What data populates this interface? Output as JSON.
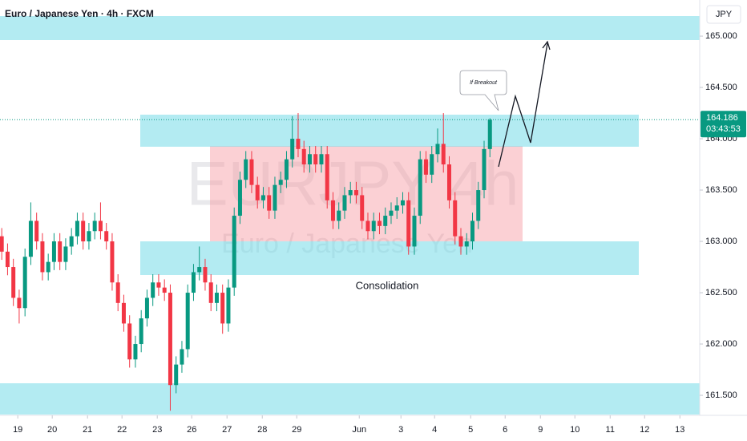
{
  "header": {
    "title": "Euro / Japanese Yen · 4h · FXCM",
    "currency": "JPY"
  },
  "watermark": {
    "symbol": "EURJPY 4h",
    "name": "Euro / Japanese Yen"
  },
  "annotations": {
    "zone_label": "Consolidation",
    "callout": "If Breakout",
    "countdown": "03:43:53"
  },
  "chart_data": {
    "type": "candlestick",
    "up_color": "#089981",
    "down_color": "#f23645",
    "grid": false,
    "open": [
      163.05,
      162.9,
      162.75,
      162.45,
      162.35,
      162.85,
      163.2,
      163.0,
      162.7,
      162.8,
      163.0,
      162.8,
      162.95,
      163.05,
      163.2,
      163.0,
      163.1,
      163.2,
      163.1,
      163.0,
      162.6,
      162.4,
      162.2,
      161.85,
      162.0,
      162.25,
      162.45,
      162.6,
      162.55,
      162.5,
      161.6,
      161.8,
      161.95,
      162.5,
      162.7,
      162.75,
      162.6,
      162.4,
      162.5,
      162.2,
      162.55,
      163.25,
      163.6,
      163.8,
      163.55,
      163.4,
      163.45,
      163.3,
      163.55,
      163.6,
      163.8,
      164.0,
      163.9,
      163.75,
      163.85,
      163.75,
      163.85,
      163.4,
      163.2,
      163.3,
      163.45,
      163.5,
      163.45,
      163.2,
      163.1,
      163.2,
      163.15,
      163.25,
      163.3,
      163.35,
      163.4,
      162.95,
      163.25,
      163.8,
      163.65,
      163.85,
      163.95,
      163.75,
      163.4,
      163.05,
      162.95,
      163.0,
      163.2,
      163.5,
      163.9
    ],
    "high": [
      163.13,
      162.98,
      162.83,
      162.53,
      162.93,
      163.38,
      163.28,
      163.08,
      162.88,
      163.08,
      163.08,
      163.03,
      163.13,
      163.28,
      163.28,
      163.18,
      163.28,
      163.38,
      163.18,
      163.08,
      162.68,
      162.48,
      162.28,
      162.08,
      162.33,
      162.53,
      162.68,
      162.68,
      162.63,
      162.58,
      161.88,
      162.03,
      162.58,
      162.78,
      162.95,
      162.83,
      162.68,
      162.58,
      162.58,
      162.63,
      163.33,
      163.68,
      163.88,
      163.88,
      163.63,
      163.53,
      163.53,
      163.63,
      163.68,
      163.88,
      164.22,
      164.25,
      163.98,
      163.93,
      163.93,
      163.93,
      163.93,
      163.48,
      163.38,
      163.53,
      163.58,
      163.58,
      163.53,
      163.28,
      163.28,
      163.28,
      163.33,
      163.38,
      163.43,
      163.48,
      163.48,
      163.33,
      163.88,
      163.88,
      163.93,
      164.1,
      164.25,
      163.83,
      163.48,
      163.13,
      163.08,
      163.28,
      163.58,
      163.98,
      164.2
    ],
    "low": [
      162.82,
      162.67,
      162.37,
      162.2,
      162.27,
      162.77,
      162.92,
      162.62,
      162.62,
      162.72,
      162.72,
      162.72,
      162.87,
      162.97,
      162.92,
      162.92,
      163.02,
      163.02,
      162.92,
      162.52,
      162.32,
      162.12,
      161.77,
      161.77,
      161.92,
      162.17,
      162.37,
      162.47,
      162.42,
      161.35,
      161.52,
      161.72,
      161.87,
      162.42,
      162.62,
      162.52,
      162.32,
      162.32,
      162.1,
      162.12,
      162.47,
      163.17,
      163.52,
      163.47,
      163.32,
      163.32,
      163.22,
      163.22,
      163.47,
      163.52,
      163.72,
      163.82,
      163.67,
      163.67,
      163.67,
      163.67,
      163.32,
      163.12,
      163.12,
      163.22,
      163.37,
      163.37,
      163.12,
      163.02,
      163.02,
      163.07,
      163.07,
      163.17,
      163.22,
      163.27,
      162.87,
      162.87,
      163.17,
      163.57,
      163.57,
      163.77,
      163.67,
      163.32,
      162.97,
      162.87,
      162.87,
      162.92,
      163.12,
      163.42,
      163.82
    ],
    "close": [
      162.9,
      162.75,
      162.45,
      162.35,
      162.85,
      163.2,
      163.0,
      162.7,
      162.8,
      163.0,
      162.8,
      162.95,
      163.05,
      163.2,
      163.0,
      163.1,
      163.2,
      163.1,
      163.0,
      162.6,
      162.4,
      162.2,
      161.85,
      162.0,
      162.25,
      162.45,
      162.6,
      162.55,
      162.5,
      161.6,
      161.8,
      161.95,
      162.5,
      162.7,
      162.75,
      162.6,
      162.4,
      162.5,
      162.2,
      162.55,
      163.25,
      163.6,
      163.8,
      163.55,
      163.4,
      163.45,
      163.3,
      163.55,
      163.6,
      163.8,
      164.0,
      163.9,
      163.75,
      163.85,
      163.75,
      163.85,
      163.4,
      163.2,
      163.3,
      163.45,
      163.5,
      163.45,
      163.2,
      163.1,
      163.2,
      163.15,
      163.25,
      163.3,
      163.35,
      163.4,
      162.95,
      163.25,
      163.8,
      163.65,
      163.85,
      163.95,
      163.75,
      163.4,
      163.05,
      162.95,
      163.0,
      163.2,
      163.5,
      163.9,
      164.186
    ],
    "xlim": [
      -0.3,
      120.1
    ],
    "xticks": [
      {
        "value": 2.76,
        "label": "19"
      },
      {
        "value": 8.69,
        "label": "20"
      },
      {
        "value": 14.76,
        "label": "21"
      },
      {
        "value": 20.69,
        "label": "22"
      },
      {
        "value": 26.76,
        "label": "23"
      },
      {
        "value": 32.69,
        "label": "26"
      },
      {
        "value": 38.76,
        "label": "27"
      },
      {
        "value": 44.83,
        "label": "28"
      },
      {
        "value": 50.76,
        "label": "29"
      },
      {
        "value": 61.52,
        "label": "Jun"
      },
      {
        "value": 68.69,
        "label": "3"
      },
      {
        "value": 74.48,
        "label": "4"
      },
      {
        "value": 80.69,
        "label": "5"
      },
      {
        "value": 86.62,
        "label": "6"
      },
      {
        "value": 92.69,
        "label": "9"
      },
      {
        "value": 98.62,
        "label": "10"
      },
      {
        "value": 104.69,
        "label": "11"
      },
      {
        "value": 110.62,
        "label": "12"
      },
      {
        "value": 116.69,
        "label": "13"
      }
    ],
    "ylim": [
      161.305,
      165.352
    ],
    "yticks": [
      {
        "value": 165,
        "label": "165.000"
      },
      {
        "value": 164.5,
        "label": "164.500"
      },
      {
        "value": 164,
        "label": "164.000"
      },
      {
        "value": 163.5,
        "label": "163.500"
      },
      {
        "value": 163,
        "label": "163.000"
      },
      {
        "value": 162.5,
        "label": "162.500"
      },
      {
        "value": 162,
        "label": "162.000"
      },
      {
        "value": 161.5,
        "label": "161.500"
      }
    ]
  }
}
